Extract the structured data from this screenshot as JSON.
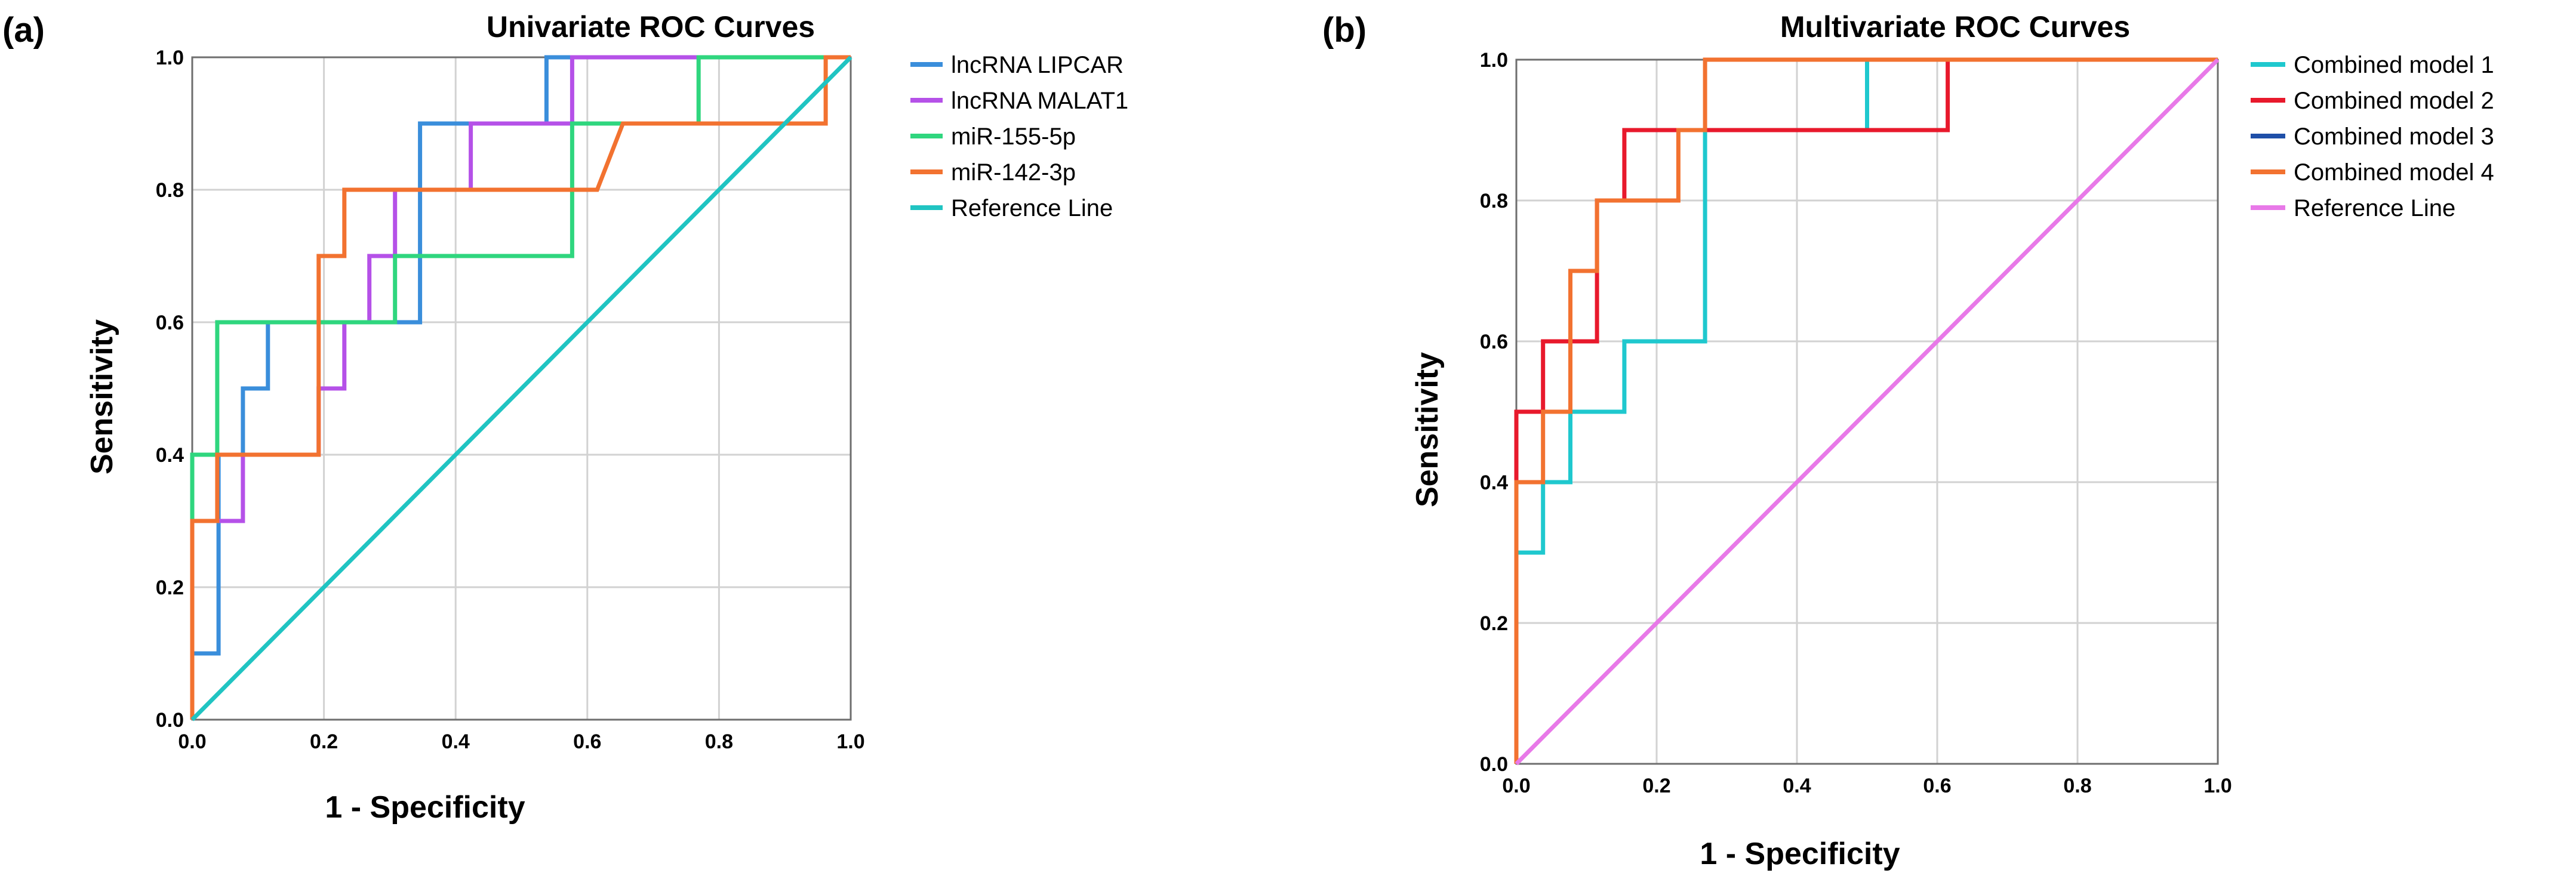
{
  "chart_data": [
    {
      "type": "line",
      "panel_label": "(a)",
      "title": "Univariate ROC Curves",
      "xlabel": "1 - Specificity",
      "ylabel": "Sensitivity",
      "xlim": [
        0,
        1
      ],
      "ylim": [
        0,
        1
      ],
      "xticks": [
        "0.0",
        "0.2",
        "0.4",
        "0.6",
        "0.8",
        "1.0"
      ],
      "yticks": [
        "0.0",
        "0.2",
        "0.4",
        "0.6",
        "0.8",
        "1.0"
      ],
      "grid": true,
      "legend_position": "right",
      "series": [
        {
          "name": "lncRNA LIPCAR",
          "color": "#3A8EDB",
          "x": [
            0,
            0,
            0.04,
            0.04,
            0.077,
            0.077,
            0.115,
            0.115,
            0.346,
            0.346,
            0.538,
            0.538,
            1.0
          ],
          "y": [
            0,
            0.1,
            0.1,
            0.4,
            0.4,
            0.5,
            0.5,
            0.6,
            0.6,
            0.9,
            0.9,
            1.0,
            1.0
          ]
        },
        {
          "name": "lncRNA MALAT1",
          "color": "#B551E8",
          "x": [
            0,
            0,
            0.077,
            0.077,
            0.192,
            0.192,
            0.231,
            0.231,
            0.269,
            0.269,
            0.308,
            0.308,
            0.423,
            0.423,
            0.577,
            0.577,
            1.0
          ],
          "y": [
            0,
            0.3,
            0.3,
            0.4,
            0.4,
            0.5,
            0.5,
            0.6,
            0.6,
            0.7,
            0.7,
            0.8,
            0.8,
            0.9,
            0.9,
            1.0,
            1.0
          ]
        },
        {
          "name": "miR-155-5p",
          "color": "#2FD67E",
          "x": [
            0,
            0,
            0.038,
            0.038,
            0.308,
            0.308,
            0.577,
            0.577,
            0.769,
            0.769,
            1.0
          ],
          "y": [
            0,
            0.4,
            0.4,
            0.6,
            0.6,
            0.7,
            0.7,
            0.9,
            0.9,
            1.0,
            1.0
          ]
        },
        {
          "name": "miR-142-3p",
          "color": "#F27230",
          "x": [
            0,
            0,
            0.038,
            0.038,
            0.192,
            0.192,
            0.231,
            0.231,
            0.615,
            0.654,
            0.962,
            0.962,
            1.0
          ],
          "y": [
            0,
            0.3,
            0.3,
            0.4,
            0.4,
            0.7,
            0.7,
            0.8,
            0.8,
            0.9,
            0.9,
            1.0,
            1.0
          ]
        },
        {
          "name": "Reference Line",
          "color": "#20C4C2",
          "x": [
            0,
            1
          ],
          "y": [
            0,
            1
          ]
        }
      ]
    },
    {
      "type": "line",
      "panel_label": "(b)",
      "title": "Multivariate ROC Curves",
      "xlabel": "1 - Specificity",
      "ylabel": "Sensitivity",
      "xlim": [
        0,
        1
      ],
      "ylim": [
        0,
        1
      ],
      "xticks": [
        "0.0",
        "0.2",
        "0.4",
        "0.6",
        "0.8",
        "1.0"
      ],
      "yticks": [
        "0.0",
        "0.2",
        "0.4",
        "0.6",
        "0.8",
        "1.0"
      ],
      "grid": true,
      "legend_position": "right",
      "series": [
        {
          "name": "Combined model 1",
          "color": "#1FC8CE",
          "x": [
            0,
            0,
            0.038,
            0.038,
            0.077,
            0.077,
            0.154,
            0.154,
            0.269,
            0.269,
            0.5,
            0.5,
            1.0
          ],
          "y": [
            0,
            0.3,
            0.3,
            0.4,
            0.4,
            0.5,
            0.5,
            0.6,
            0.6,
            0.9,
            0.9,
            1.0,
            1.0
          ]
        },
        {
          "name": "Combined model 2",
          "color": "#E8192C",
          "x": [
            0,
            0,
            0.038,
            0.038,
            0.115,
            0.115,
            0.154,
            0.154,
            0.615,
            0.615,
            1.0
          ],
          "y": [
            0,
            0.5,
            0.5,
            0.6,
            0.6,
            0.8,
            0.8,
            0.9,
            0.9,
            1.0,
            1.0
          ]
        },
        {
          "name": "Combined model 3",
          "color": "#1F4FA8",
          "x": [],
          "y": []
        },
        {
          "name": "Combined model 4",
          "color": "#F27230",
          "x": [
            0,
            0,
            0.038,
            0.038,
            0.077,
            0.077,
            0.115,
            0.115,
            0.231,
            0.231,
            0.269,
            0.269,
            1.0
          ],
          "y": [
            0,
            0.4,
            0.4,
            0.5,
            0.5,
            0.7,
            0.7,
            0.8,
            0.8,
            0.9,
            0.9,
            1.0,
            1.0
          ]
        },
        {
          "name": "Reference Line",
          "color": "#E879E8",
          "x": [
            0,
            1
          ],
          "y": [
            0,
            1
          ]
        }
      ]
    }
  ]
}
